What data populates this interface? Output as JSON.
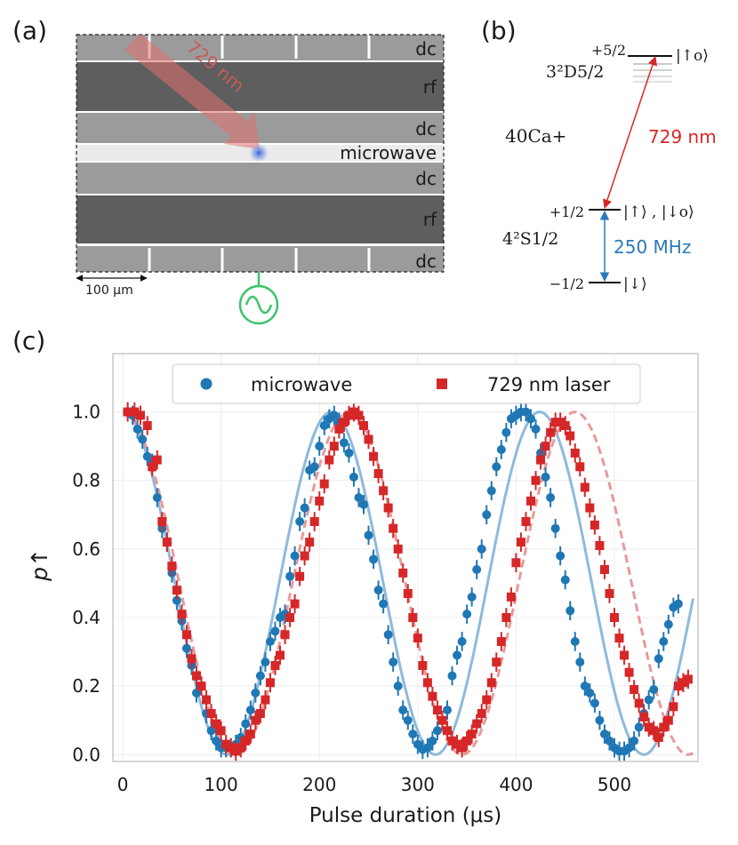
{
  "panel_labels": {
    "a": "(a)",
    "b": "(b)",
    "c": "(c)"
  },
  "trap": {
    "electrodes": [
      "dc",
      "rf",
      "dc",
      "microwave",
      "dc",
      "rf",
      "dc"
    ],
    "laser_label": "729 nm",
    "scale_bar": "100 µm",
    "colors": {
      "rf": "#5e5e5e",
      "dc": "#9b9b9b",
      "microwave": "#ebebeb",
      "laser": "#e27070",
      "ion": "#3f63d9",
      "source": "#3cc46a"
    }
  },
  "levels": {
    "ion": "40Ca+",
    "upper_state": "3²D5/2",
    "upper_m": "+5/2",
    "upper_ket": "|↑o⟩",
    "lower_state": "4²S1/2",
    "lower_plus_m": "+1/2",
    "lower_plus_ket": "|↑⟩ , |↓o⟩",
    "lower_minus_m": "−1/2",
    "lower_minus_ket": "|↓⟩",
    "transition_laser": "729 nm",
    "transition_mw": "250 MHz",
    "colors": {
      "laser": "#d62728",
      "mw": "#2a7ab9"
    }
  },
  "chart_data": {
    "type": "scatter",
    "title": "",
    "xlabel": "Pulse duration (μs)",
    "ylabel": "p↑",
    "xlim": [
      -10,
      585
    ],
    "ylim": [
      -0.02,
      1.17
    ],
    "xticks": [
      0,
      100,
      200,
      300,
      400,
      500
    ],
    "xtick_labels": [
      "0",
      "100",
      "200",
      "300",
      "400",
      "500"
    ],
    "yticks": [
      0.0,
      0.2,
      0.4,
      0.6,
      0.8,
      1.0
    ],
    "ytick_labels": [
      "0.0",
      "0.2",
      "0.4",
      "0.6",
      "0.8",
      "1.0"
    ],
    "grid": true,
    "legend": "top-center",
    "series": [
      {
        "name": "microwave",
        "marker": "circle",
        "color": "#1f77b4",
        "fit_color": "#82b3d8",
        "fit_style": "solid",
        "fit": {
          "period": 212,
          "phase": 0,
          "x_range": [
            0,
            580
          ]
        },
        "points": [
          [
            5,
            1.0
          ],
          [
            10,
            0.99
          ],
          [
            15,
            0.95
          ],
          [
            20,
            0.92
          ],
          [
            25,
            0.87
          ],
          [
            30,
            0.85
          ],
          [
            35,
            0.75
          ],
          [
            40,
            0.66
          ],
          [
            45,
            0.62
          ],
          [
            50,
            0.53
          ],
          [
            55,
            0.45
          ],
          [
            60,
            0.39
          ],
          [
            65,
            0.31
          ],
          [
            70,
            0.26
          ],
          [
            75,
            0.18
          ],
          [
            80,
            0.2
          ],
          [
            85,
            0.12
          ],
          [
            90,
            0.07
          ],
          [
            95,
            0.04
          ],
          [
            100,
            0.02
          ],
          [
            105,
            0.02
          ],
          [
            110,
            0.02
          ],
          [
            115,
            0.03
          ],
          [
            120,
            0.05
          ],
          [
            125,
            0.09
          ],
          [
            130,
            0.13
          ],
          [
            135,
            0.18
          ],
          [
            140,
            0.23
          ],
          [
            145,
            0.27
          ],
          [
            150,
            0.33
          ],
          [
            155,
            0.36
          ],
          [
            160,
            0.4
          ],
          [
            165,
            0.41
          ],
          [
            170,
            0.52
          ],
          [
            175,
            0.58
          ],
          [
            180,
            0.68
          ],
          [
            185,
            0.72
          ],
          [
            190,
            0.83
          ],
          [
            195,
            0.84
          ],
          [
            200,
            0.9
          ],
          [
            205,
            0.96
          ],
          [
            210,
            0.98
          ],
          [
            215,
            0.99
          ],
          [
            220,
            0.97
          ],
          [
            225,
            0.91
          ],
          [
            230,
            0.88
          ],
          [
            235,
            0.81
          ],
          [
            240,
            0.75
          ],
          [
            245,
            0.73
          ],
          [
            250,
            0.64
          ],
          [
            255,
            0.57
          ],
          [
            260,
            0.48
          ],
          [
            265,
            0.44
          ],
          [
            270,
            0.35
          ],
          [
            275,
            0.27
          ],
          [
            280,
            0.2
          ],
          [
            285,
            0.13
          ],
          [
            290,
            0.1
          ],
          [
            295,
            0.06
          ],
          [
            300,
            0.03
          ],
          [
            305,
            0.015
          ],
          [
            310,
            0.02
          ],
          [
            315,
            0.04
          ],
          [
            320,
            0.07
          ],
          [
            325,
            0.1
          ],
          [
            330,
            0.13
          ],
          [
            335,
            0.23
          ],
          [
            340,
            0.29
          ],
          [
            345,
            0.33
          ],
          [
            350,
            0.41
          ],
          [
            355,
            0.46
          ],
          [
            360,
            0.54
          ],
          [
            365,
            0.6
          ],
          [
            370,
            0.7
          ],
          [
            375,
            0.77
          ],
          [
            380,
            0.84
          ],
          [
            385,
            0.89
          ],
          [
            390,
            0.94
          ],
          [
            395,
            0.98
          ],
          [
            400,
            0.99
          ],
          [
            405,
            1.0
          ],
          [
            410,
            1.0
          ],
          [
            415,
            0.98
          ],
          [
            420,
            0.95
          ],
          [
            425,
            0.88
          ],
          [
            430,
            0.81
          ],
          [
            435,
            0.75
          ],
          [
            440,
            0.66
          ],
          [
            445,
            0.58
          ],
          [
            450,
            0.51
          ],
          [
            455,
            0.42
          ],
          [
            460,
            0.33
          ],
          [
            465,
            0.27
          ],
          [
            470,
            0.2
          ],
          [
            475,
            0.18
          ],
          [
            480,
            0.15
          ],
          [
            485,
            0.1
          ],
          [
            490,
            0.06
          ],
          [
            495,
            0.04
          ],
          [
            500,
            0.02
          ],
          [
            505,
            0.01
          ],
          [
            510,
            0.01
          ],
          [
            515,
            0.02
          ],
          [
            520,
            0.04
          ],
          [
            525,
            0.08
          ],
          [
            530,
            0.12
          ],
          [
            535,
            0.16
          ],
          [
            540,
            0.19
          ],
          [
            545,
            0.28
          ],
          [
            550,
            0.33
          ],
          [
            555,
            0.38
          ],
          [
            560,
            0.43
          ],
          [
            565,
            0.44
          ]
        ]
      },
      {
        "name": "729 nm laser",
        "marker": "square",
        "color": "#d62728",
        "fit_color": "#e58f8f",
        "fit_style": "dashed",
        "fit": {
          "period": 230,
          "phase": 0,
          "x_range": [
            0,
            580
          ]
        },
        "points": [
          [
            5,
            1.0
          ],
          [
            12,
            1.0
          ],
          [
            18,
            0.99
          ],
          [
            25,
            0.96
          ],
          [
            30,
            0.84
          ],
          [
            35,
            0.86
          ],
          [
            40,
            0.68
          ],
          [
            45,
            0.62
          ],
          [
            50,
            0.55
          ],
          [
            55,
            0.48
          ],
          [
            60,
            0.41
          ],
          [
            65,
            0.35
          ],
          [
            70,
            0.28
          ],
          [
            75,
            0.23
          ],
          [
            80,
            0.2
          ],
          [
            85,
            0.16
          ],
          [
            90,
            0.12
          ],
          [
            95,
            0.09
          ],
          [
            100,
            0.07
          ],
          [
            105,
            0.03
          ],
          [
            110,
            0.02
          ],
          [
            115,
            0.01
          ],
          [
            120,
            0.02
          ],
          [
            125,
            0.04
          ],
          [
            130,
            0.06
          ],
          [
            135,
            0.1
          ],
          [
            140,
            0.12
          ],
          [
            145,
            0.16
          ],
          [
            150,
            0.21
          ],
          [
            155,
            0.26
          ],
          [
            160,
            0.29
          ],
          [
            165,
            0.35
          ],
          [
            170,
            0.4
          ],
          [
            175,
            0.44
          ],
          [
            180,
            0.52
          ],
          [
            185,
            0.58
          ],
          [
            190,
            0.62
          ],
          [
            195,
            0.68
          ],
          [
            200,
            0.74
          ],
          [
            205,
            0.79
          ],
          [
            210,
            0.86
          ],
          [
            215,
            0.9
          ],
          [
            220,
            0.95
          ],
          [
            225,
            0.97
          ],
          [
            230,
            0.99
          ],
          [
            235,
            1.0
          ],
          [
            240,
            0.99
          ],
          [
            245,
            0.96
          ],
          [
            250,
            0.92
          ],
          [
            255,
            0.87
          ],
          [
            260,
            0.82
          ],
          [
            265,
            0.77
          ],
          [
            270,
            0.72
          ],
          [
            275,
            0.66
          ],
          [
            280,
            0.6
          ],
          [
            285,
            0.53
          ],
          [
            290,
            0.47
          ],
          [
            295,
            0.4
          ],
          [
            300,
            0.34
          ],
          [
            305,
            0.26
          ],
          [
            310,
            0.21
          ],
          [
            315,
            0.17
          ],
          [
            320,
            0.13
          ],
          [
            325,
            0.1
          ],
          [
            330,
            0.07
          ],
          [
            335,
            0.04
          ],
          [
            340,
            0.03
          ],
          [
            345,
            0.02
          ],
          [
            350,
            0.04
          ],
          [
            355,
            0.06
          ],
          [
            360,
            0.09
          ],
          [
            365,
            0.12
          ],
          [
            370,
            0.16
          ],
          [
            375,
            0.21
          ],
          [
            380,
            0.27
          ],
          [
            385,
            0.33
          ],
          [
            390,
            0.4
          ],
          [
            395,
            0.46
          ],
          [
            400,
            0.56
          ],
          [
            405,
            0.62
          ],
          [
            410,
            0.68
          ],
          [
            415,
            0.74
          ],
          [
            420,
            0.8
          ],
          [
            425,
            0.86
          ],
          [
            430,
            0.9
          ],
          [
            435,
            0.94
          ],
          [
            440,
            0.97
          ],
          [
            445,
            0.97
          ],
          [
            450,
            0.96
          ],
          [
            455,
            0.93
          ],
          [
            460,
            0.88
          ],
          [
            465,
            0.84
          ],
          [
            470,
            0.78
          ],
          [
            475,
            0.72
          ],
          [
            480,
            0.67
          ],
          [
            485,
            0.61
          ],
          [
            490,
            0.54
          ],
          [
            495,
            0.47
          ],
          [
            500,
            0.4
          ],
          [
            505,
            0.34
          ],
          [
            510,
            0.29
          ],
          [
            515,
            0.24
          ],
          [
            520,
            0.19
          ],
          [
            525,
            0.15
          ],
          [
            530,
            0.11
          ],
          [
            535,
            0.08
          ],
          [
            540,
            0.07
          ],
          [
            545,
            0.05
          ],
          [
            550,
            0.08
          ],
          [
            555,
            0.1
          ],
          [
            560,
            0.14
          ],
          [
            565,
            0.2
          ],
          [
            570,
            0.21
          ],
          [
            575,
            0.22
          ]
        ]
      }
    ]
  }
}
